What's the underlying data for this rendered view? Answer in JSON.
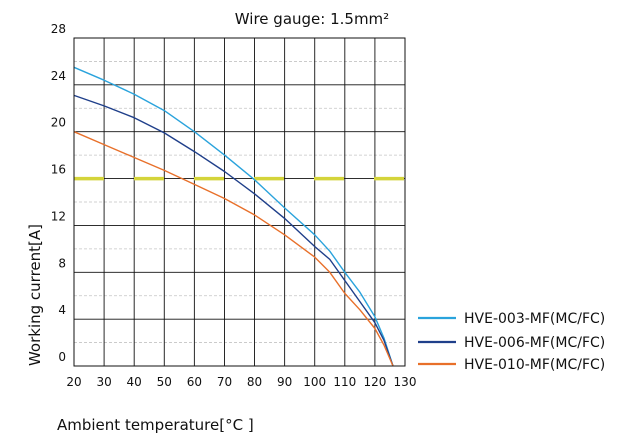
{
  "chart_data": {
    "type": "line",
    "title": "Wire gauge: 1.5mm²",
    "xlabel": "Ambient temperature[°C ]",
    "ylabel": "Working current[A]",
    "xlim": [
      20,
      130
    ],
    "ylim": [
      0,
      28
    ],
    "x_ticks": [
      "20",
      "30",
      "40",
      "50",
      "60",
      "70",
      "80",
      "90",
      "100",
      "110",
      "120",
      "130"
    ],
    "y_ticks": [
      "0",
      "4",
      "8",
      "12",
      "16",
      "20",
      "24",
      "28"
    ],
    "grid": true,
    "minor_y_grid": true,
    "legend_position": "right",
    "reference_line": {
      "y": 16,
      "color": "#d4d43a",
      "style": "dashed"
    },
    "series": [
      {
        "name": "HVE-003-MF(MC/FC)",
        "color": "#2aa3dc",
        "points": [
          [
            20,
            25.5
          ],
          [
            30,
            24.4
          ],
          [
            40,
            23.2
          ],
          [
            50,
            21.8
          ],
          [
            60,
            20.0
          ],
          [
            70,
            18.0
          ],
          [
            80,
            15.9
          ],
          [
            90,
            13.5
          ],
          [
            100,
            11.2
          ],
          [
            105,
            9.8
          ],
          [
            110,
            8.0
          ],
          [
            115,
            6.3
          ],
          [
            120,
            4.2
          ],
          [
            123,
            2.4
          ],
          [
            126,
            0
          ]
        ]
      },
      {
        "name": "HVE-006-MF(MC/FC)",
        "color": "#1f3f8a",
        "points": [
          [
            20,
            23.1
          ],
          [
            30,
            22.2
          ],
          [
            40,
            21.2
          ],
          [
            50,
            19.9
          ],
          [
            60,
            18.3
          ],
          [
            70,
            16.6
          ],
          [
            80,
            14.7
          ],
          [
            90,
            12.6
          ],
          [
            100,
            10.2
          ],
          [
            105,
            9.1
          ],
          [
            110,
            7.3
          ],
          [
            115,
            5.5
          ],
          [
            120,
            3.7
          ],
          [
            123,
            2.2
          ],
          [
            126,
            0
          ]
        ]
      },
      {
        "name": "HVE-010-MF(MC/FC)",
        "color": "#e8702a",
        "points": [
          [
            20,
            20.0
          ],
          [
            30,
            18.9
          ],
          [
            40,
            17.8
          ],
          [
            50,
            16.7
          ],
          [
            60,
            15.5
          ],
          [
            70,
            14.3
          ],
          [
            80,
            12.9
          ],
          [
            90,
            11.2
          ],
          [
            100,
            9.3
          ],
          [
            105,
            8.0
          ],
          [
            110,
            6.2
          ],
          [
            115,
            4.8
          ],
          [
            120,
            3.2
          ],
          [
            123,
            1.8
          ],
          [
            126,
            0
          ]
        ]
      }
    ]
  }
}
